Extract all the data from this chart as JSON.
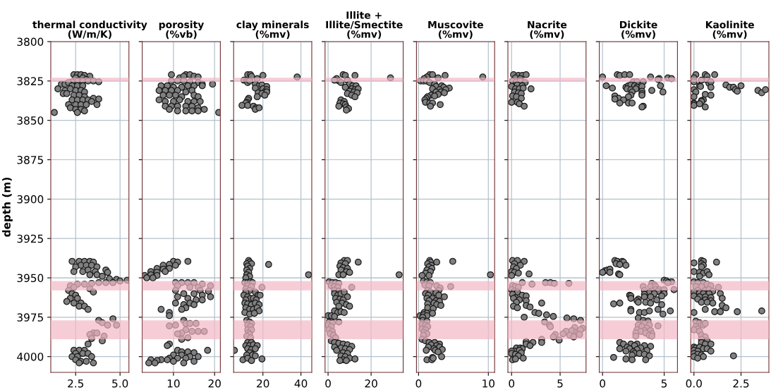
{
  "chart_data": [
    {
      "type": "scatter",
      "title": "thermal conductivity\n(W/m/K)",
      "ylabel": "depth (m)",
      "color": "#808080",
      "marker": "circle",
      "grid": true,
      "xlim": [
        1.1,
        5.5
      ],
      "xticks": [
        {
          "value": 2.5,
          "label": "2.5"
        },
        {
          "value": 5.0,
          "label": "5.0"
        }
      ],
      "ylim": [
        4010,
        3800
      ],
      "yticks": [
        3800,
        3825,
        3850,
        3875,
        3900,
        3925,
        3950,
        3975,
        4000
      ],
      "bands": [
        {
          "axis": "y",
          "from": 3823,
          "to": 3825.5,
          "color": "#f2b8c6"
        },
        {
          "axis": "y",
          "from": 3952,
          "to": 3958,
          "color": "#f2b8c6"
        },
        {
          "axis": "y",
          "from": 3977,
          "to": 3989,
          "color": "#f2b8c6"
        }
      ],
      "x": [
        2.4,
        2.6,
        2.8,
        3.0,
        3.3,
        2.5,
        2.9,
        3.1,
        2.6,
        2.9,
        3.2,
        3.5,
        3.8,
        2.3,
        1.7,
        1.9,
        2.1,
        2.3,
        2.6,
        2.9,
        1.5,
        1.9,
        2.2,
        2.5,
        2.8,
        3.0,
        1.8,
        2.0,
        2.4,
        2.7,
        3.0,
        2.3,
        2.6,
        2.9,
        3.2,
        3.5,
        3.8,
        3.4,
        3.7,
        2.1,
        2.5,
        2.8,
        3.1,
        2.2,
        2.5,
        2.8,
        3.0,
        2.6,
        1.3,
        2.3,
        2.7,
        3.0,
        3.3,
        3.5,
        2.8,
        3.1,
        3.4,
        3.7,
        2.5,
        2.4,
        2.9,
        3.2,
        3.6,
        4.2,
        4.3,
        3.3,
        3.7,
        4.0,
        4.4,
        4.8,
        5.4,
        2.2,
        2.6,
        3.0,
        3.4,
        3.8,
        4.2,
        4.6,
        5.0,
        2.4,
        3.3,
        3.5,
        2.1,
        2.3,
        2.5,
        2.2,
        2.6,
        2.0,
        2.4,
        2.8,
        2.7,
        3.0,
        3.2,
        3.8,
        4.0,
        4.6,
        4.8,
        4.3,
        3.5,
        3.7,
        3.3,
        4.1,
        3.4,
        4.0,
        3.2,
        2.4,
        2.7,
        3.0,
        2.5,
        2.9,
        3.2,
        2.3,
        2.6,
        3.4,
        2.5,
        2.8,
        3.1,
        3.5,
        2.7
      ],
      "values": [
        3821,
        3821,
        3821,
        3821.5,
        3822,
        3823,
        3823,
        3824,
        3825,
        3825,
        3825,
        3825,
        3825.5,
        3825.5,
        3827,
        3827,
        3826,
        3828,
        3828,
        3828,
        3830,
        3831,
        3830,
        3831,
        3831,
        3832,
        3833,
        3833,
        3834,
        3834,
        3835,
        3837,
        3837,
        3837,
        3837,
        3836,
        3836.5,
        3838,
        3840,
        3840,
        3840,
        3840,
        3840,
        3842,
        3843,
        3843,
        3844,
        3845,
        3845,
        3939.5,
        3939.5,
        3939.5,
        3939.5,
        3940,
        3942,
        3942,
        3942,
        3943,
        3943,
        3946,
        3946,
        3945,
        3946,
        3945,
        3946.5,
        3948,
        3948,
        3949,
        3950.5,
        3951,
        3951.5,
        3955,
        3954,
        3954,
        3953.5,
        3953,
        3953,
        3953,
        3952,
        3956,
        3957,
        3959,
        3958,
        3960,
        3961,
        3963,
        3963,
        3965,
        3966,
        3966,
        3968,
        3968,
        3970,
        3977,
        3978.5,
        3976,
        3980,
        3980,
        3985,
        3985,
        3986,
        3987,
        3988.5,
        3990,
        3992,
        3996,
        3996,
        3996,
        3998,
        3998,
        3998,
        4000,
        4000,
        4000,
        4002,
        4003,
        4003,
        4004,
        4004
      ]
    },
    {
      "type": "scatter",
      "title": "porosity\n(%vb)",
      "color": "#808080",
      "marker": "circle",
      "grid": true,
      "tick_labels": "x",
      "xlim": [
        2.4,
        21.4
      ],
      "xticks": [
        10,
        20
      ],
      "ylim": [
        4010,
        3800
      ],
      "yticks": [
        3800,
        3825,
        3850,
        3875,
        3900,
        3925,
        3950,
        3975,
        4000
      ],
      "bands": [
        {
          "axis": "y",
          "from": 3823,
          "to": 3825.5,
          "color": "#f2b8c6"
        },
        {
          "axis": "y",
          "from": 3952,
          "to": 3958,
          "color": "#f2b8c6"
        },
        {
          "axis": "y",
          "from": 3977,
          "to": 3989,
          "color": "#f2b8c6"
        }
      ],
      "x": [
        9.5,
        13,
        14,
        15,
        16,
        11.5,
        12.5,
        9.5,
        11,
        12.5,
        14,
        16,
        17,
        19.5,
        7,
        8.5,
        10,
        12,
        13.5,
        15,
        17,
        6.5,
        8,
        9.5,
        11,
        13,
        14.5,
        7.5,
        9,
        10.5,
        12,
        15,
        16,
        6.5,
        8,
        10,
        11.5,
        13.5,
        15,
        16.5,
        8,
        9.5,
        11,
        13,
        14.5,
        16,
        9,
        11,
        13,
        14.5,
        16,
        17.5,
        21,
        10,
        11,
        13.5,
        7.5,
        9,
        10.5,
        6,
        7.5,
        9,
        4.5,
        6,
        8,
        3,
        4.5,
        6,
        3.5,
        5,
        10.5,
        12,
        13.5,
        15,
        17,
        19,
        11,
        14,
        16,
        16.5,
        18.5,
        19,
        17,
        15,
        12.5,
        10.5,
        11,
        13.5,
        15.5,
        17,
        14,
        12.5,
        15,
        13,
        12,
        10.5,
        7,
        9,
        9,
        12.5,
        13,
        10.5,
        9,
        14,
        15.5,
        13,
        12,
        14.5,
        16,
        17.5,
        11,
        13.5,
        12,
        9,
        8.5,
        18.3,
        11,
        12,
        13.5,
        15,
        10,
        12,
        14,
        16,
        9,
        11,
        13,
        7,
        8.5,
        10,
        6,
        4.5,
        4,
        5.5,
        12.5,
        15
      ],
      "values": [
        3821,
        3821,
        3821,
        3822,
        3822.5,
        3823,
        3822,
        3825,
        3825,
        3825,
        3825.5,
        3826,
        3827,
        3827,
        3828,
        3828,
        3829,
        3829,
        3828,
        3828,
        3828,
        3831,
        3831,
        3831,
        3831,
        3832,
        3831,
        3834,
        3834,
        3834,
        3835,
        3834,
        3835,
        3837,
        3838,
        3838,
        3837,
        3838,
        3838,
        3838,
        3841,
        3841,
        3841,
        3841,
        3841,
        3842,
        3843,
        3844,
        3844,
        3844,
        3844,
        3843,
        3845,
        3939.5,
        3940,
        3939.5,
        3942,
        3941.5,
        3942,
        3944,
        3944.5,
        3944,
        3946,
        3946.5,
        3946,
        3948.5,
        3948,
        3948.5,
        3950,
        3950,
        3953,
        3953,
        3953,
        3953,
        3954,
        3955,
        3955,
        3956,
        3956,
        3958,
        3958.5,
        3962,
        3961,
        3960,
        3960,
        3958,
        3962,
        3963,
        3964,
        3964,
        3966,
        3967,
        3967,
        3969,
        3970,
        3966,
        3970,
        3972,
        3974,
        3977,
        3979,
        3980,
        3980.5,
        3979,
        3979,
        3983,
        3985,
        3984,
        3984,
        3984,
        3985.5,
        3988,
        3989,
        3992,
        3993,
        3996,
        3996,
        3997,
        3997,
        3997.5,
        3999,
        3999,
        4000,
        4000,
        4001,
        4001,
        4001,
        4002,
        4002,
        4003,
        4002.5,
        4002,
        4004,
        4004,
        4004,
        4003
      ]
    },
    {
      "type": "scatter",
      "title": "clay minerals\n(%mv)",
      "color": "#808080",
      "marker": "circle",
      "grid": true,
      "tick_labels": "x",
      "xlim": [
        4.6,
        45.7
      ],
      "xticks": [
        20,
        40
      ],
      "ylim": [
        4010,
        3800
      ],
      "yticks": [
        3800,
        3825,
        3850,
        3875,
        3900,
        3925,
        3950,
        3975,
        4000
      ],
      "bands": [
        {
          "axis": "y",
          "from": 3823,
          "to": 3825.5,
          "color": "#f2b8c6"
        },
        {
          "axis": "y",
          "from": 3952,
          "to": 3958,
          "color": "#f2b8c6"
        },
        {
          "axis": "y",
          "from": 3977,
          "to": 3989,
          "color": "#f2b8c6"
        }
      ],
      "x": [
        12,
        13.5,
        14,
        20,
        38,
        17,
        10,
        11.5,
        12,
        13,
        16,
        18,
        19.5,
        22,
        16,
        20,
        22,
        21,
        22,
        17.5,
        19.5,
        21,
        17,
        12.5,
        12,
        11.5,
        11,
        9,
        12,
        15,
        16.5,
        16,
        18,
        12.5,
        13,
        11.5,
        14,
        23,
        12,
        13,
        11.5,
        12.5,
        11.5,
        44,
        13,
        11,
        10.5,
        12,
        13.5,
        14.5,
        12,
        14,
        19.5,
        11,
        13,
        16,
        17.5,
        18.5,
        11,
        10,
        12,
        13.5,
        11,
        15,
        16.5,
        10.5,
        12,
        14,
        16,
        18,
        11,
        13,
        15,
        17,
        18,
        10.5,
        13,
        15.5,
        11.5,
        13,
        14,
        12,
        13.5,
        12,
        14,
        12.5,
        13,
        11.5,
        13.5,
        12,
        14,
        11,
        13,
        15,
        17,
        12,
        14,
        16,
        5,
        13,
        11.5,
        14.5,
        16,
        9.5,
        12,
        14,
        19.5
      ],
      "values": [
        3821,
        3821,
        3822,
        3821.5,
        3822.5,
        3823.5,
        3824.5,
        3825,
        3826,
        3825,
        3827,
        3828,
        3827.5,
        3828.5,
        3829.5,
        3830,
        3830.5,
        3832,
        3832,
        3832.5,
        3833,
        3834,
        3835,
        3836,
        3837,
        3838.5,
        3839,
        3840.5,
        3840.5,
        3841,
        3842,
        3843,
        3842,
        3939,
        3940,
        3941,
        3941,
        3941.5,
        3942.5,
        3944,
        3945,
        3946.5,
        3948,
        3948,
        3949,
        3950,
        3953,
        3953,
        3952.5,
        3953,
        3955,
        3955.5,
        3956,
        3957,
        3958,
        3959,
        3961,
        3961,
        3959,
        3961,
        3962,
        3963,
        3964,
        3963,
        3964,
        3966,
        3966.5,
        3967,
        3966,
        3967,
        3969,
        3970,
        3970,
        3969,
        3971,
        3972,
        3973,
        3972.5,
        3977,
        3978,
        3979,
        3980,
        3981,
        3983,
        3983,
        3985,
        3986,
        3987,
        3988,
        3991,
        3991,
        3993,
        3993,
        3992.5,
        3993,
        3995,
        3995.5,
        3995,
        3996,
        3997.5,
        3999,
        3999,
        3999.5,
        4002,
        4001,
        4002.5,
        4001.5
      ]
    },
    {
      "type": "scatter",
      "title": "Illite +\nIllite/Smectite\n(%mv)",
      "color": "#808080",
      "marker": "circle",
      "grid": true,
      "tick_labels": "x",
      "xlim": [
        -1.4,
        34.9
      ],
      "xticks": [
        0,
        20
      ],
      "ylim": [
        4010,
        3800
      ],
      "yticks": [
        3800,
        3825,
        3850,
        3875,
        3900,
        3925,
        3950,
        3975,
        4000
      ],
      "bands": [
        {
          "axis": "y",
          "from": 3823,
          "to": 3825.5,
          "color": "#f2b8c6"
        },
        {
          "axis": "y",
          "from": 3952,
          "to": 3958,
          "color": "#f2b8c6"
        },
        {
          "axis": "y",
          "from": 3977,
          "to": 3989,
          "color": "#f2b8c6"
        }
      ],
      "x": [
        7,
        8,
        12.5,
        29,
        4,
        5,
        6,
        3,
        9,
        10,
        11.5,
        13,
        8,
        11,
        12.5,
        14,
        10,
        12,
        13.5,
        9,
        11,
        12.5,
        6,
        7.5,
        5.5,
        7,
        8,
        5,
        8.5,
        9.5,
        8.5,
        7.5,
        9,
        14,
        6,
        8,
        5.5,
        7,
        9,
        6,
        8.5,
        10,
        5,
        7,
        33,
        0.5,
        2,
        3.5,
        5,
        1.5,
        3,
        4.5,
        11,
        3,
        5,
        3,
        4.5,
        6,
        7.5,
        9,
        3.5,
        5.5,
        7,
        4,
        6.5,
        8.5,
        5,
        10,
        3,
        4.5,
        6,
        7.5,
        0,
        1.5,
        3,
        0.5,
        2,
        5,
        0,
        1.5,
        0.5,
        2,
        1,
        2.5,
        3.5,
        1.5,
        3,
        5,
        7,
        9,
        11,
        3,
        6,
        8,
        10,
        4,
        7,
        9,
        6,
        8,
        10,
        12.5,
        7,
        5.5,
        8.5
      ],
      "values": [
        3821,
        3821.5,
        3821.5,
        3823,
        3823.5,
        3825,
        3826,
        3824.5,
        3824.5,
        3827,
        3828,
        3828,
        3829,
        3830,
        3830.5,
        3830,
        3831.5,
        3832,
        3832.5,
        3833,
        3834,
        3835,
        3837,
        3838,
        3839,
        3839.5,
        3840,
        3841,
        3841.5,
        3842.5,
        3843.5,
        3939,
        3939,
        3940,
        3940.5,
        3941,
        3942.5,
        3943.5,
        3944,
        3945,
        3946,
        3946.5,
        3948,
        3948,
        3948,
        3952.5,
        3953,
        3953,
        3953.5,
        3955,
        3955.5,
        3956,
        3956,
        3958,
        3958.5,
        3960,
        3961,
        3960,
        3959,
        3962,
        3963,
        3963.5,
        3964,
        3965.5,
        3966,
        3967,
        3968,
        3968,
        3971,
        3972,
        3971.5,
        3972,
        3974,
        3974,
        3974.5,
        3978,
        3978.5,
        3978,
        3980,
        3981,
        3983,
        3984,
        3985.5,
        3986.5,
        3988,
        3990,
        3991,
        3991.5,
        3992,
        3992.5,
        3993.5,
        3994,
        3994.5,
        3995,
        3995.5,
        3996,
        3997.5,
        3998,
        3999.5,
        4000,
        4001,
        4001.5,
        4002,
        4002.5,
        4002.5
      ]
    },
    {
      "type": "scatter",
      "title": "Muscovite\n(%mv)",
      "color": "#808080",
      "marker": "circle",
      "grid": true,
      "tick_labels": "x",
      "xlim": [
        -0.3,
        10.9
      ],
      "xticks": [
        0,
        10
      ],
      "ylim": [
        4010,
        3800
      ],
      "yticks": [
        3800,
        3825,
        3850,
        3875,
        3900,
        3925,
        3950,
        3975,
        4000
      ],
      "bands": [
        {
          "axis": "y",
          "from": 3823,
          "to": 3825.5,
          "color": "#f2b8c6"
        },
        {
          "axis": "y",
          "from": 3952,
          "to": 3958,
          "color": "#f2b8c6"
        },
        {
          "axis": "y",
          "from": 3977,
          "to": 3989,
          "color": "#f2b8c6"
        }
      ],
      "x": [
        1.6,
        2,
        3.8,
        9.2,
        1.2,
        2.8,
        0.8,
        0.3,
        0.7,
        1.1,
        1.6,
        2.3,
        2.5,
        3.3,
        3.6,
        4.4,
        2,
        3,
        3.9,
        2.5,
        3.2,
        3.7,
        2.8,
        1.8,
        2.3,
        1.3,
        1.1,
        0.9,
        1,
        1.6,
        2,
        3.1,
        1.7,
        1.6,
        1.7,
        2.6,
        4.9,
        1.3,
        1.8,
        1.5,
        1.9,
        1.2,
        1.7,
        1,
        10.3,
        0.5,
        1.5,
        0.7,
        1.2,
        1.7,
        0.9,
        1.5,
        2.6,
        4.6,
        3.1,
        2.9,
        1.3,
        1.7,
        2.5,
        1,
        1.4,
        2.9,
        3.7,
        1.2,
        2,
        1.5,
        2.5,
        3,
        2.2,
        1.3,
        2.6,
        3.2,
        1.3,
        2.1,
        0.8,
        1.2,
        2,
        0.2,
        0.7,
        1.2,
        0.6,
        0.6,
        1.2,
        0.5,
        1,
        1.3,
        0.5,
        1,
        0.8,
        1.2,
        0.7,
        0.5,
        1,
        1.5,
        2.3,
        3,
        1.8,
        2.6,
        1.4,
        2.2,
        3,
        1.1,
        2.4,
        3.4,
        2.8,
        3.3,
        2,
        1.2,
        1.9,
        2.1
      ],
      "values": [
        3821,
        3821,
        3821.5,
        3822.5,
        3822.5,
        3823,
        3823.5,
        3825,
        3825,
        3825,
        3826,
        3827,
        3828.5,
        3828,
        3829,
        3829.5,
        3830,
        3830.5,
        3830.5,
        3832,
        3832,
        3832.5,
        3833.5,
        3834,
        3834.5,
        3835,
        3836,
        3837,
        3838.5,
        3839,
        3839,
        3840,
        3841,
        3939,
        3940,
        3940,
        3939.5,
        3941,
        3942,
        3943,
        3944,
        3945,
        3946,
        3947,
        3948,
        3948.5,
        3948.5,
        3952,
        3952.5,
        3953,
        3954.5,
        3955,
        3955,
        3955.5,
        3956.5,
        3958,
        3958,
        3959,
        3959.5,
        3960,
        3961,
        3961,
        3962,
        3963,
        3963,
        3964.5,
        3964.5,
        3965,
        3966,
        3966.5,
        3967,
        3967.5,
        3969,
        3969.5,
        3972,
        3972.5,
        3972.5,
        3974,
        3973.5,
        3974,
        3975,
        3977,
        3977.5,
        3979.5,
        3980,
        3981,
        3982.5,
        3983,
        3984.5,
        3985.5,
        3986.5,
        3989,
        3990,
        3991,
        3991,
        3992,
        3992.5,
        3993,
        3994,
        3995,
        3994,
        3996,
        3996,
        3995.5,
        3997,
        4000,
        4000.5,
        4002,
        4002,
        4001
      ]
    },
    {
      "type": "scatter",
      "title": "Nacrite\n(%mv)",
      "color": "#808080",
      "marker": "circle",
      "grid": true,
      "tick_labels": "x",
      "xlim": [
        -0.38,
        7.67
      ],
      "xticks": [
        0,
        5
      ],
      "ylim": [
        4010,
        3800
      ],
      "yticks": [
        3800,
        3825,
        3850,
        3875,
        3900,
        3925,
        3950,
        3975,
        4000
      ],
      "bands": [
        {
          "axis": "y",
          "from": 3823,
          "to": 3825.5,
          "color": "#f2b8c6"
        },
        {
          "axis": "y",
          "from": 3952,
          "to": 3958,
          "color": "#f2b8c6"
        },
        {
          "axis": "y",
          "from": 3977,
          "to": 3989,
          "color": "#f2b8c6"
        }
      ],
      "x": [
        0.2,
        0.7,
        1.1,
        1.5,
        0.4,
        0.9,
        0.1,
        0.5,
        0.9,
        1.4,
        0.6,
        1.1,
        0,
        0.4,
        0.8,
        1.2,
        2,
        0.3,
        0.7,
        1,
        0.1,
        0.5,
        1.0,
        0,
        0.6,
        0.8,
        1.3,
        0.1,
        0.6,
        1.3,
        0.3,
        0.9,
        0.2,
        0.5,
        0,
        0.3,
        0.7,
        1.8,
        0,
        1.1,
        3.5,
        4,
        4.4,
        5.9,
        2.1,
        0.1,
        0.4,
        0.7,
        0,
        0.3,
        0.6,
        0.1,
        1.1,
        1.5,
        0.4,
        0.2,
        0.8,
        1.5,
        0.5,
        3.1,
        1.5,
        0.2,
        0.6,
        1.9,
        2.4,
        2.8,
        3.6,
        4.3,
        1.3,
        5.7,
        6.4,
        7.1,
        3.4,
        3.9,
        4,
        6.5,
        7.3,
        5.6,
        6.2,
        6.7,
        6.9,
        7.1,
        5.3,
        6,
        7,
        4.5,
        4.3,
        6.4,
        4.9,
        3.1,
        3.1,
        2.2,
        1.5,
        1.5,
        1.9,
        0.5,
        0.9,
        1.1,
        0.3,
        0.8,
        0,
        0,
        0.4,
        1,
        0.7,
        1.2,
        0.1,
        0.4
      ],
      "values": [
        3821,
        3821.5,
        3821.5,
        3821,
        3823,
        3823.5,
        3825,
        3825.5,
        3825,
        3826,
        3827.5,
        3828,
        3828.5,
        3830,
        3830,
        3829.5,
        3830,
        3832,
        3832.5,
        3833,
        3834.5,
        3835,
        3836,
        3838.5,
        3838.5,
        3839.5,
        3841,
        3939,
        3939,
        3939.5,
        3941,
        3942,
        3943,
        3944,
        3946,
        3946.5,
        3947,
        3947.5,
        3948.5,
        3953,
        3953,
        3953,
        3953.5,
        3953.5,
        3954,
        3955,
        3955.5,
        3956,
        3957.5,
        3958.5,
        3959,
        3960.5,
        3961,
        3961.5,
        3962.5,
        3963,
        3964,
        3964.5,
        3965.5,
        3966,
        3967.5,
        3968,
        3969,
        3968.5,
        3972,
        3972.5,
        3973.5,
        3974.5,
        3975,
        3975.5,
        3976,
        3977,
        3978,
        3980,
        3981,
        3981.5,
        3982,
        3984,
        3983.5,
        3984.5,
        3985,
        3983,
        3985.5,
        3986.5,
        3986,
        3986,
        3987.5,
        3987.5,
        3989.5,
        3989,
        3991,
        3991,
        3990.5,
        3992,
        3993,
        3994.5,
        3994.5,
        3995,
        3996.5,
        3996,
        3996.5,
        3998,
        3998.5,
        3997.5,
        3999.5,
        4001,
        4002,
        4001.5
      ]
    },
    {
      "type": "scatter",
      "title": "Dickite\n(%mv)",
      "color": "#808080",
      "marker": "circle",
      "grid": true,
      "tick_labels": "x",
      "xlim": [
        -0.26,
        6.08
      ],
      "xticks": [
        0,
        5
      ],
      "ylim": [
        4010,
        3800
      ],
      "yticks": [
        3800,
        3825,
        3850,
        3875,
        3900,
        3925,
        3950,
        3975,
        4000
      ],
      "bands": [
        {
          "axis": "y",
          "from": 3823,
          "to": 3825.5,
          "color": "#f2b8c6"
        },
        {
          "axis": "y",
          "from": 3952,
          "to": 3958,
          "color": "#f2b8c6"
        },
        {
          "axis": "y",
          "from": 3977,
          "to": 3989,
          "color": "#f2b8c6"
        }
      ],
      "x": [
        0,
        1.2,
        1.4,
        1.8,
        2.2,
        3.9,
        5.3,
        5.6,
        4.6,
        2.5,
        2.8,
        3.3,
        4.5,
        0.3,
        0.8,
        1.9,
        2.1,
        2.3,
        2.6,
        2.8,
        3.2,
        4.7,
        2,
        2.3,
        2.7,
        3.2,
        4,
        4.9,
        2.4,
        3.2,
        1,
        2.3,
        2.1,
        3.2,
        1.3,
        1,
        1.7,
        1.4,
        2.1,
        2.4,
        3.3,
        3.2,
        1,
        1.2,
        1.6,
        1.7,
        1.1,
        1.4,
        1.9,
        0.2,
        0.4,
        0.6,
        0,
        0.6,
        1.3,
        1.4,
        5,
        5.2,
        5.6,
        5.3,
        4,
        4.2,
        3.9,
        4.3,
        3.3,
        4.3,
        4.6,
        5.0,
        5.8,
        3.4,
        4.0,
        4.5,
        3.8,
        4.2,
        5,
        2.2,
        3.4,
        2.3,
        4.8,
        3.4,
        3.9,
        2.3,
        2.9,
        4.4,
        2.8,
        3.5,
        2.9,
        3.9,
        0.9,
        1.4,
        4.8,
        2.3,
        2.3,
        3,
        3.4,
        3.8,
        4.5,
        5.5,
        4.9,
        2.9,
        3.3,
        3.7,
        3.4,
        2.9,
        3.8,
        4.5,
        3.2,
        3.6,
        2.8,
        3.4,
        3.1,
        3.9,
        2.7,
        3.5,
        4.0,
        3.8,
        2.7,
        4.0,
        1.4,
        1.7,
        2.3,
        2.8,
        2.6,
        3.4,
        3.9,
        2,
        1.4,
        2.2,
        3.1,
        2.8,
        1.9,
        2.5,
        3.6,
        2.6,
        3.0,
        3.4,
        2.4,
        3.8,
        0.9,
        1.9,
        2.4,
        3.5
      ],
      "values": [
        3822.5,
        3821,
        3821.5,
        3821,
        3821,
        3822.5,
        3823,
        3823.5,
        3823.5,
        3825.5,
        3825.5,
        3825.5,
        3824,
        3828,
        3829.5,
        3829,
        3828,
        3827.5,
        3828,
        3829,
        3828.5,
        3828,
        3830,
        3830.5,
        3830,
        3831.5,
        3831,
        3832,
        3832,
        3833,
        3834.5,
        3834,
        3835,
        3834,
        3836,
        3836.5,
        3837,
        3839,
        3839,
        3839,
        3841,
        3841.5,
        3939,
        3939.5,
        3939.5,
        3940,
        3941,
        3941.5,
        3942,
        3945.5,
        3945,
        3944.5,
        3946.5,
        3946.5,
        3947.5,
        3948,
        3951.5,
        3952,
        3952.5,
        3953,
        3953.5,
        3954.5,
        3955.5,
        3955.5,
        3955.5,
        3957.5,
        3957.5,
        3957.5,
        3957.5,
        3958,
        3958.5,
        3958.5,
        3959.5,
        3960,
        3960,
        3961,
        3960.5,
        3961.5,
        3961.5,
        3962,
        3962,
        3963,
        3963.5,
        3964,
        3964.5,
        3965.5,
        3965.5,
        3966,
        3966.5,
        3966,
        3967,
        3970,
        3971,
        3972,
        3972,
        3971,
        3970,
        3971,
        3973,
        3975.5,
        3977,
        3977.5,
        3979,
        3980,
        3980,
        3980.5,
        3981,
        3982,
        3983,
        3983.5,
        3984,
        3983.5,
        3985,
        3985,
        3985.5,
        3986.5,
        3987,
        3987,
        3991,
        3992,
        3992,
        3992,
        3993,
        3993,
        3993.5,
        3994,
        3995,
        3995,
        3994.5,
        3995.5,
        3996.5,
        3997,
        3996,
        3998,
        3998,
        3998.5,
        3999,
        3999.5,
        4000.5,
        4001.5,
        4002,
        4002
      ]
    },
    {
      "type": "scatter",
      "title": "Kaolinite\n(%mv)",
      "color": "#808080",
      "marker": "circle",
      "grid": true,
      "tick_labels": "x",
      "xlim": [
        -0.17,
        3.98
      ],
      "xticks": [
        {
          "value": 0.0,
          "label": "0.0"
        },
        {
          "value": 2.5,
          "label": "2.5"
        }
      ],
      "ylim": [
        4010,
        3800
      ],
      "yticks": [
        3800,
        3825,
        3850,
        3875,
        3900,
        3925,
        3950,
        3975,
        4000
      ],
      "bands": [
        {
          "axis": "y",
          "from": 3823,
          "to": 3825.5,
          "color": "#f2b8c6"
        },
        {
          "axis": "y",
          "from": 3952,
          "to": 3958,
          "color": "#f2b8c6"
        },
        {
          "axis": "y",
          "from": 3977,
          "to": 3989,
          "color": "#f2b8c6"
        }
      ],
      "x": [
        0.1,
        0.6,
        1.1,
        0.7,
        0,
        0.4,
        0.7,
        0.8,
        0.9,
        0,
        0.3,
        0.35,
        0.9,
        1.7,
        1.9,
        2.1,
        2.5,
        3.4,
        3.6,
        3.8,
        2.2,
        2.3,
        0,
        0.1,
        0.6,
        0.9,
        0,
        0.5,
        0.4,
        0,
        0,
        0,
        0.4,
        0.3,
        0.6,
        0.4,
        0.5,
        0,
        0.4,
        0.5,
        1.2,
        0.4,
        0,
        0.3,
        0.5,
        0.7,
        0.8,
        0.3,
        0,
        0.2,
        0.5,
        0.7,
        0.9,
        1.3,
        0.1,
        0.4,
        0.2,
        0.6,
        0.8,
        1,
        0,
        0.3,
        0.5,
        0.8,
        1.4,
        0,
        0.3,
        0.6,
        0.9,
        0.2,
        0.6,
        0.9,
        1.5,
        0.4,
        0.7,
        1,
        1.5,
        1.7,
        0.6,
        1.1,
        1.4,
        2.3,
        3.6,
        0,
        0.1,
        0.3,
        0.4,
        0.5,
        0.6,
        0.1,
        0.2,
        0,
        0.3,
        0.4,
        0.6,
        0.4,
        0.7,
        0.4,
        0.6,
        0.9,
        0,
        0.1,
        0.3,
        0.5,
        0.7,
        0,
        0.2,
        0.9,
        0,
        0.2,
        0.4,
        0,
        0.5,
        0.2,
        2.1
      ],
      "values": [
        3821,
        3821,
        3821,
        3822,
        3823,
        3824.5,
        3824.5,
        3826.5,
        3825.5,
        3825.5,
        3828,
        3828.5,
        3829,
        3827.5,
        3829,
        3829,
        3828,
        3831,
        3832.5,
        3830.5,
        3830.5,
        3831.5,
        3830.5,
        3832,
        3833.5,
        3834,
        3835,
        3837,
        3837.5,
        3839,
        3839.5,
        3840.5,
        3838,
        3839.5,
        3841.5,
        3939,
        3939.5,
        3940.5,
        3941,
        3942,
        3940,
        3943,
        3946,
        3946.5,
        3947,
        3946,
        3948,
        3949,
        3952.5,
        3953,
        3953,
        3954,
        3955,
        3956,
        3955.5,
        3955.5,
        3958,
        3958,
        3957.5,
        3958.5,
        3959,
        3959.5,
        3960,
        3960,
        3960,
        3961.5,
        3962,
        3962,
        3962.5,
        3963.5,
        3964,
        3964.5,
        3963,
        3965.5,
        3965.5,
        3966,
        3967.5,
        3969,
        3970,
        3971.5,
        3971.5,
        3971.5,
        3971,
        3972,
        3977.5,
        3978.5,
        3979.5,
        3980,
        3979,
        3981,
        3982.5,
        3983,
        3984,
        3986.5,
        3987.5,
        3989,
        3990,
        3991,
        3992,
        3992,
        3994,
        3994.5,
        3994,
        3995,
        3995,
        3996,
        3996.5,
        3996.5,
        3998,
        3998.5,
        3999,
        4000,
        4000,
        4001,
        3999.5
      ]
    }
  ]
}
